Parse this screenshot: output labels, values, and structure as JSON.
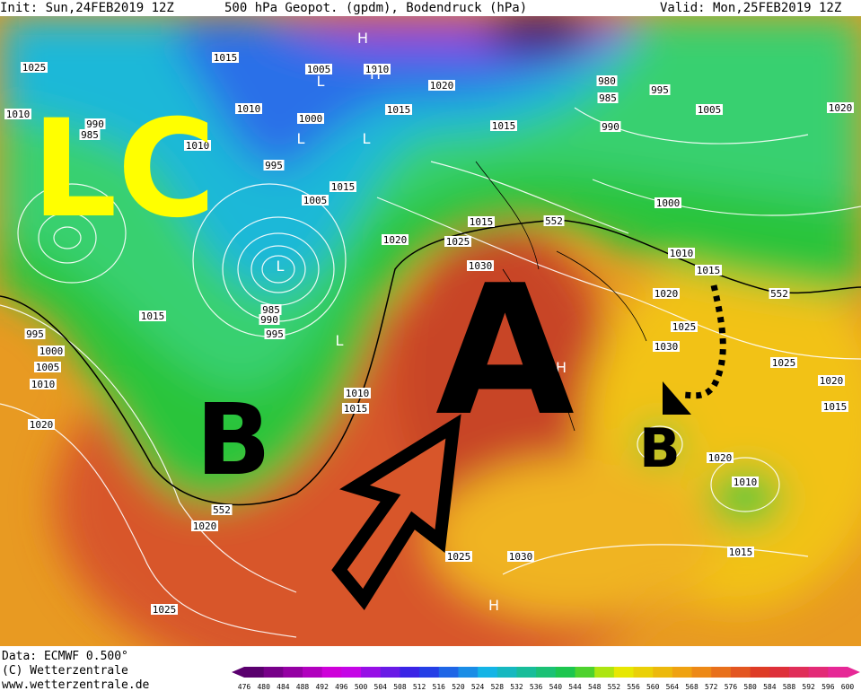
{
  "header": {
    "init": "Init: Sun,24FEB2019 12Z",
    "title": "500 hPa Geopot. (gpdm), Bodendruck (hPa)",
    "valid": "Valid: Mon,25FEB2019 12Z"
  },
  "footer": {
    "data": "Data: ECMWF  0.500°",
    "copyright": "(C) Wetterzentrale",
    "url": "www.wetterzentrale.de"
  },
  "colorbar": {
    "labels": [
      "476",
      "480",
      "484",
      "488",
      "492",
      "496",
      "500",
      "504",
      "508",
      "512",
      "516",
      "520",
      "524",
      "528",
      "532",
      "536",
      "540",
      "544",
      "548",
      "552",
      "556",
      "560",
      "564",
      "568",
      "572",
      "576",
      "580",
      "584",
      "588",
      "592",
      "596",
      "600"
    ]
  },
  "map": {
    "isobar_labels": [
      "1015",
      "1025",
      "1005",
      "1010",
      "1020",
      "980",
      "985",
      "995",
      "1005",
      "1020",
      "1010",
      "990",
      "985",
      "1010",
      "1000",
      "1015",
      "1015",
      "990",
      "1010",
      "995",
      "1015",
      "1005",
      "1000",
      "1015",
      "1020",
      "1025",
      "1010",
      "1030",
      "1015",
      "1020",
      "552",
      "552",
      "1015",
      "995",
      "1000",
      "1005",
      "1010",
      "985",
      "990",
      "995",
      "1025",
      "1030",
      "1025",
      "1010",
      "1015",
      "1020",
      "1015",
      "1020",
      "1020",
      "1010",
      "552",
      "1020",
      "1025",
      "1030",
      "1015",
      "1025"
    ],
    "pressure_centers": [
      "L",
      "L",
      "L",
      "H",
      "H",
      "L",
      "L",
      "H",
      "H"
    ],
    "annotations": {
      "lc": "LC",
      "high": "A",
      "low_west": "B",
      "low_east": "B"
    }
  }
}
